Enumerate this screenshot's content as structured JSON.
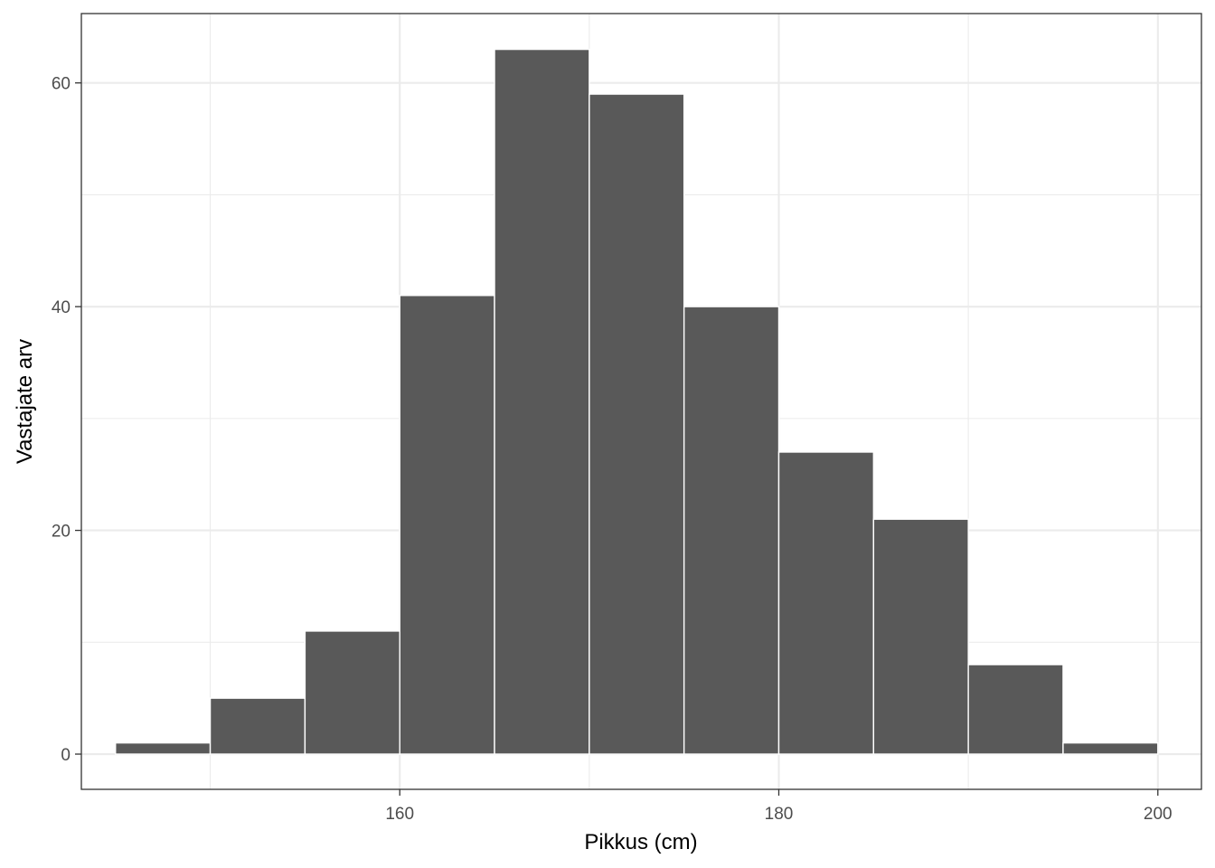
{
  "chart_data": {
    "type": "bar",
    "title": "",
    "xlabel": "Pikkus (cm)",
    "ylabel": "Vastajate arv",
    "xlim": [
      143.2,
      202.3
    ],
    "ylim": [
      -3.15,
      66.2
    ],
    "x_ticks": [
      160,
      180,
      200
    ],
    "x_minor_ticks": [
      150,
      170,
      190
    ],
    "y_ticks": [
      0,
      20,
      40,
      60
    ],
    "y_minor_ticks": [
      10,
      30,
      50
    ],
    "grid": true,
    "bins": [
      {
        "start": 145,
        "end": 150,
        "count": 1
      },
      {
        "start": 150,
        "end": 155,
        "count": 5
      },
      {
        "start": 155,
        "end": 160,
        "count": 11
      },
      {
        "start": 160,
        "end": 165,
        "count": 41
      },
      {
        "start": 165,
        "end": 170,
        "count": 63
      },
      {
        "start": 170,
        "end": 175,
        "count": 59
      },
      {
        "start": 175,
        "end": 180,
        "count": 40
      },
      {
        "start": 180,
        "end": 185,
        "count": 27
      },
      {
        "start": 185,
        "end": 190,
        "count": 21
      },
      {
        "start": 190,
        "end": 195,
        "count": 8
      },
      {
        "start": 195,
        "end": 200,
        "count": 1
      }
    ],
    "bar_color": "#595959",
    "bar_outline": "#ffffff",
    "grid_color": "#ebebeb",
    "panel_border": "#333333"
  }
}
